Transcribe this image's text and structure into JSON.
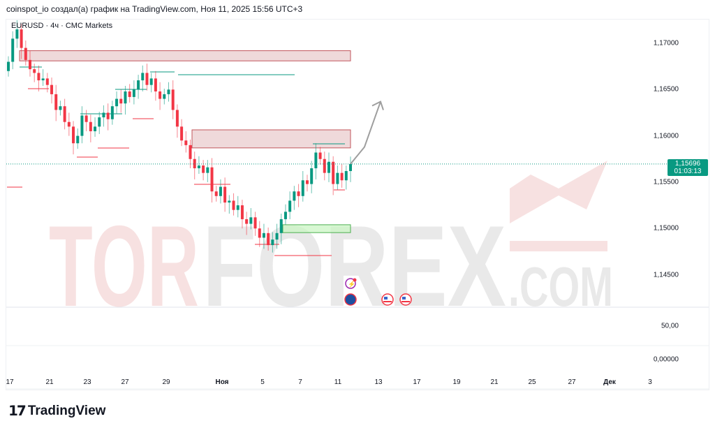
{
  "header": {
    "attribution": "coinspot_io создал(а) график на TradingView.com, Ноя 11, 2025 15:56 UTC+3"
  },
  "symbol_label": "EURUSD · 4ч · CMC Markets",
  "price_tag": {
    "price": "1,15696",
    "countdown": "01:03:13"
  },
  "watermark": {
    "part1": "TOR",
    "part2": "FOREX",
    ".com": ".COM"
  },
  "logo": {
    "text": "TradingView"
  },
  "colors": {
    "up": "#089981",
    "down": "#f23645",
    "zone_red": "#e8c9cb",
    "zone_green": "#c8f5c0",
    "arrow": "#9e9e9e"
  },
  "chart_data": {
    "type": "candlestick",
    "symbol": "EURUSD",
    "timeframe": "4h",
    "y_ticks": [
      "1,17000",
      "1,16500",
      "1,16000",
      "1,15500",
      "1,15000",
      "1,14500"
    ],
    "ylim": [
      1.1425,
      1.1735
    ],
    "x_ticks": [
      "17",
      "21",
      "23",
      "27",
      "29",
      "Ноя",
      "5",
      "7",
      "11",
      "13",
      "17",
      "19",
      "21",
      "25",
      "27",
      "Дек",
      "3"
    ],
    "indicator_ticks": [
      "50,00",
      "0,00000"
    ],
    "last_price": 1.15696,
    "closes": [
      1.168,
      1.1705,
      1.1715,
      1.1695,
      1.1682,
      1.1672,
      1.1668,
      1.166,
      1.1662,
      1.1655,
      1.1645,
      1.1628,
      1.1632,
      1.1615,
      1.161,
      1.1592,
      1.16,
      1.1622,
      1.1615,
      1.1605,
      1.161,
      1.162,
      1.1625,
      1.1618,
      1.1632,
      1.164,
      1.1635,
      1.1648,
      1.1642,
      1.165,
      1.166,
      1.1668,
      1.1655,
      1.1662,
      1.1648,
      1.164,
      1.1645,
      1.165,
      1.1628,
      1.161,
      1.1595,
      1.159,
      1.1575,
      1.1565,
      1.1568,
      1.156,
      1.1566,
      1.154,
      1.1535,
      1.1545,
      1.1528,
      1.153,
      1.152,
      1.1525,
      1.151,
      1.1505,
      1.1512,
      1.15,
      1.149,
      1.1495,
      1.1482,
      1.1488,
      1.1495,
      1.151,
      1.1518,
      1.153,
      1.154,
      1.1535,
      1.1552,
      1.1548,
      1.1565,
      1.1582,
      1.1575,
      1.156,
      1.1572,
      1.1548,
      1.156,
      1.1552,
      1.1562,
      1.15696
    ],
    "zones": [
      {
        "kind": "supply",
        "top": 1.1692,
        "bottom": 1.1681
      },
      {
        "kind": "supply",
        "top": 1.16065,
        "bottom": 1.1587
      },
      {
        "kind": "demand",
        "top": 1.1504,
        "bottom": 1.14955
      }
    ],
    "projection": [
      1.15696,
      1.1588,
      1.1637
    ]
  }
}
